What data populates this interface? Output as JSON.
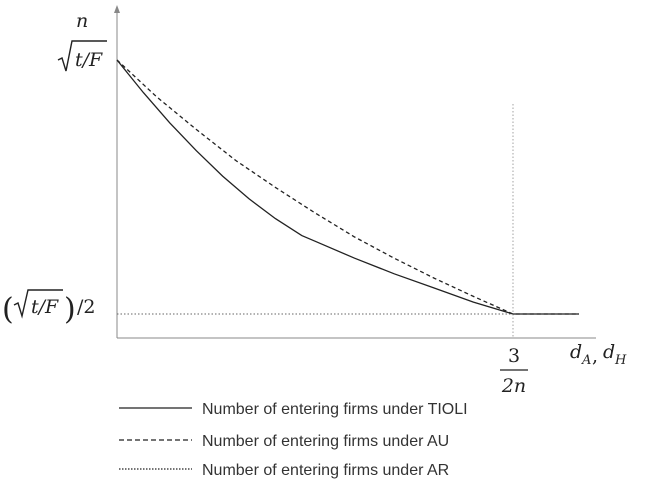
{
  "chart_data": {
    "type": "line",
    "title": "",
    "xlabel": "d_A, d_H",
    "ylabel": "n",
    "xlim": [
      0,
      1.75
    ],
    "ylim": [
      0,
      1.22
    ],
    "y_ticks": [
      {
        "label": "√(t/F)",
        "value": 1.0
      },
      {
        "label": "(√(t/F))/2",
        "value": 0.103
      }
    ],
    "x_ticks": [
      {
        "label": "3/2n",
        "value": 1.5
      }
    ],
    "axis_labels": {
      "y_symbol": "n",
      "x_symbol_1": "d",
      "x_sub_1": "A",
      "x_sep": ",",
      "x_symbol_2": "d",
      "x_sub_2": "H",
      "y_top_tick": "t/F",
      "y_bottom_tick_open": "(",
      "y_bottom_tick_close": ")",
      "y_bottom_tick_tail": "/2",
      "x_tick_num": "3",
      "x_tick_den": "2n"
    },
    "grid": false,
    "legend_position": "bottom",
    "series": [
      {
        "name": "Number of entering firms under TIOLI",
        "style": "solid",
        "x": [
          0,
          0.1,
          0.2,
          0.3,
          0.4,
          0.5,
          0.6,
          0.7,
          0.75,
          0.9,
          1.05,
          1.2,
          1.35,
          1.5,
          1.75
        ],
        "y": [
          1.0,
          0.885,
          0.778,
          0.68,
          0.59,
          0.51,
          0.44,
          0.38,
          0.36,
          0.3,
          0.245,
          0.195,
          0.145,
          0.103,
          0.103
        ]
      },
      {
        "name": "Number of entering firms under AU",
        "style": "dashed",
        "x": [
          0,
          0.15,
          0.3,
          0.45,
          0.6,
          0.75,
          0.9,
          1.05,
          1.2,
          1.35,
          1.5,
          1.75
        ],
        "y": [
          1.0,
          0.87,
          0.755,
          0.645,
          0.55,
          0.46,
          0.375,
          0.3,
          0.23,
          0.165,
          0.103,
          0.103
        ]
      },
      {
        "name": "Number of entering firms under AR",
        "style": "dotted",
        "x": [
          0,
          1.5
        ],
        "y": [
          0.103,
          0.103
        ]
      }
    ]
  }
}
